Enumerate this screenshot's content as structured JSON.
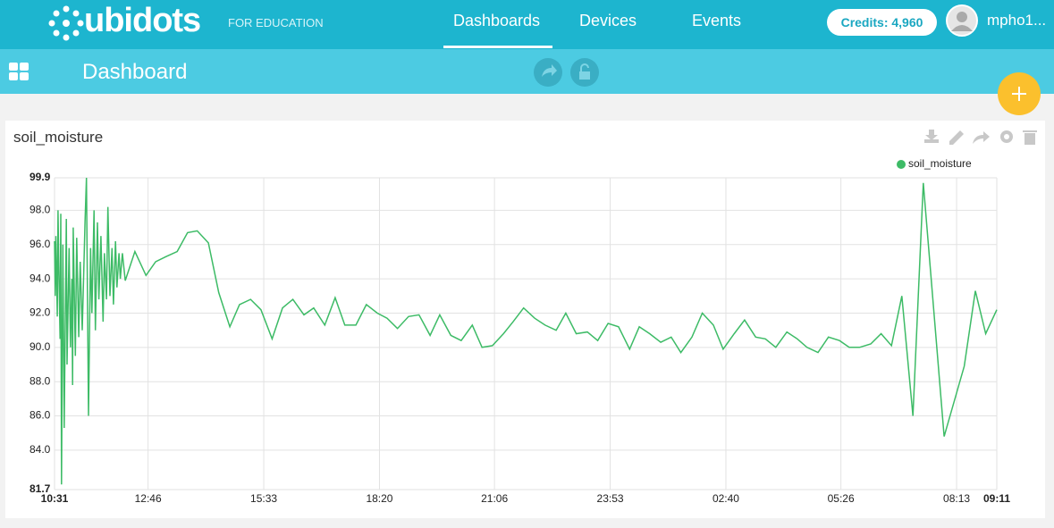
{
  "header": {
    "logo": "ubidots",
    "tagline": "FOR EDUCATION",
    "nav": [
      "Dashboards",
      "Devices",
      "Events"
    ],
    "credits": "Credits: 4,960",
    "user": "mpho1..."
  },
  "toolbar": {
    "title": "Dashboard"
  },
  "widget": {
    "title": "soil_moisture"
  },
  "chart_data": {
    "type": "line",
    "x": [
      "10:31",
      "10:32",
      "10:33",
      "10:35",
      "10:36",
      "10:37",
      "10:39",
      "10:40",
      "10:41",
      "10:43",
      "10:44",
      "10:45",
      "10:48",
      "10:49",
      "10:52",
      "10:54",
      "10:56",
      "10:57",
      "10:58",
      "11:01",
      "11:03",
      "11:06",
      "11:08",
      "11:11",
      "11:15",
      "11:17",
      "11:20",
      "11:23",
      "11:25",
      "11:28",
      "11:30",
      "11:33",
      "11:35",
      "11:38",
      "11:41",
      "11:43",
      "11:46",
      "11:48",
      "11:51",
      "11:54",
      "11:56",
      "11:59",
      "12:01",
      "12:04",
      "12:06",
      "12:09",
      "12:13",
      "12:27",
      "12:43",
      "12:57",
      "13:12",
      "13:28",
      "13:43",
      "13:57",
      "14:13",
      "14:28",
      "14:44",
      "14:58",
      "15:14",
      "15:29",
      "15:45",
      "16:00",
      "16:15",
      "16:31",
      "16:45",
      "17:01",
      "17:16",
      "17:30",
      "17:46",
      "18:01",
      "18:17",
      "18:31",
      "18:46",
      "19:02",
      "19:17",
      "19:33",
      "19:47",
      "20:03",
      "20:18",
      "20:34",
      "20:48",
      "21:03",
      "21:19",
      "21:33",
      "21:48",
      "22:04",
      "22:19",
      "22:35",
      "22:49",
      "23:04",
      "23:20",
      "23:35",
      "23:50",
      "00:05",
      "00:21",
      "00:35",
      "00:50",
      "01:06",
      "01:21",
      "01:35",
      "01:51",
      "02:06",
      "02:22",
      "02:36",
      "02:52",
      "03:07",
      "03:23",
      "03:37",
      "03:52",
      "04:08",
      "04:23",
      "04:37",
      "04:53",
      "05:08",
      "05:24",
      "05:38",
      "05:53",
      "06:09",
      "06:24",
      "06:39",
      "06:54",
      "07:10",
      "07:25",
      "07:55",
      "08:24",
      "08:40",
      "08:55",
      "09:11"
    ],
    "series": [
      {
        "name": "soil_moisture",
        "color": "#3dbb66",
        "values": [
          96.2,
          93.0,
          96.5,
          91.8,
          98.0,
          95.0,
          90.5,
          97.8,
          82.0,
          96.0,
          90.8,
          85.3,
          97.5,
          89.0,
          95.8,
          90.0,
          94.0,
          87.8,
          97.0,
          89.5,
          96.4,
          90.6,
          95.0,
          91.0,
          97.3,
          99.9,
          86.0,
          95.8,
          92.0,
          98.0,
          91.0,
          97.3,
          92.8,
          96.5,
          91.5,
          95.5,
          92.8,
          98.2,
          93.0,
          95.8,
          92.5,
          96.2,
          93.5,
          95.5,
          94.0,
          95.5,
          93.9,
          95.6,
          94.2,
          95.0,
          95.3,
          95.6,
          96.7,
          96.8,
          96.1,
          93.2,
          91.2,
          92.5,
          92.8,
          92.2,
          90.5,
          92.3,
          92.8,
          91.9,
          92.3,
          91.3,
          92.9,
          91.3,
          91.3,
          92.5,
          92.0,
          91.7,
          91.1,
          91.8,
          91.9,
          90.7,
          91.9,
          90.7,
          90.4,
          91.3,
          90.0,
          90.1,
          90.8,
          91.5,
          92.3,
          91.7,
          91.3,
          91.0,
          92.0,
          90.8,
          90.9,
          90.4,
          91.4,
          91.2,
          89.9,
          91.2,
          90.8,
          90.3,
          90.6,
          89.7,
          90.6,
          92.0,
          91.3,
          89.9,
          90.8,
          91.6,
          90.6,
          90.5,
          90.0,
          90.9,
          90.5,
          90.0,
          89.7,
          90.6,
          90.4,
          90.0,
          90.0,
          90.2,
          90.8,
          90.1,
          93.0,
          86.0,
          99.6,
          84.8,
          88.9,
          93.3,
          90.8,
          92.2
        ]
      }
    ],
    "xlim": [
      "10:31",
      "09:11"
    ],
    "xticks": [
      "10:31",
      "12:46",
      "15:33",
      "18:20",
      "21:06",
      "23:53",
      "02:40",
      "05:26",
      "08:13",
      "09:11"
    ],
    "ylim": [
      81.7,
      99.9
    ],
    "yticks": [
      81.7,
      {
        "value": 84,
        "label": "84.0"
      },
      {
        "value": 86,
        "label": "86.0"
      },
      {
        "value": 88,
        "label": "88.0"
      },
      {
        "value": 90,
        "label": "90.0"
      },
      {
        "value": 92,
        "label": "92.0"
      },
      {
        "value": 94,
        "label": "94.0"
      },
      {
        "value": 96,
        "label": "96.0"
      },
      {
        "value": 98,
        "label": "98.0"
      },
      99.9
    ],
    "grid": true,
    "legend": "top-right"
  }
}
